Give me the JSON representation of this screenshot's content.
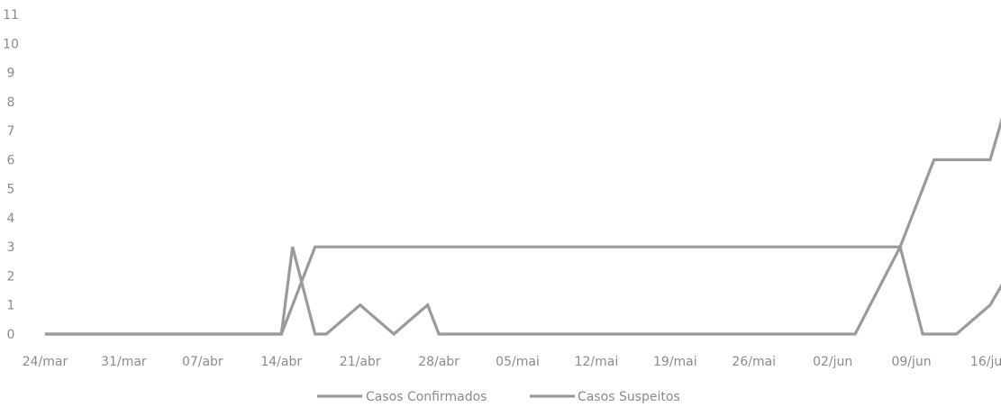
{
  "chart_data": {
    "type": "line",
    "ylim": [
      0,
      11
    ],
    "y_ticks": [
      "0",
      "1",
      "2",
      "3",
      "4",
      "5",
      "6",
      "7",
      "8",
      "9",
      "10",
      "11"
    ],
    "x_tick_labels": [
      "24/mar",
      "31/mar",
      "07/abr",
      "14/abr",
      "21/abr",
      "28/abr",
      "05/mai",
      "12/mai",
      "19/mai",
      "26/mai",
      "02/jun",
      "09/jun",
      "16/jun"
    ],
    "x_start": "2020-03-24",
    "x_end": "2020-06-16",
    "series": [
      {
        "name": "Casos Confirmados",
        "points": [
          [
            "2020-03-24",
            0
          ],
          [
            "2020-04-14",
            0
          ],
          [
            "2020-04-17",
            3
          ],
          [
            "2020-06-08",
            3
          ],
          [
            "2020-06-11",
            6
          ],
          [
            "2020-06-16",
            6
          ],
          [
            "2020-06-19",
            10
          ]
        ]
      },
      {
        "name": "Casos Suspeitos",
        "points": [
          [
            "2020-03-24",
            0
          ],
          [
            "2020-04-14",
            0
          ],
          [
            "2020-04-15",
            3
          ],
          [
            "2020-04-17",
            0
          ],
          [
            "2020-04-18",
            0
          ],
          [
            "2020-04-21",
            1
          ],
          [
            "2020-04-24",
            0
          ],
          [
            "2020-04-27",
            1
          ],
          [
            "2020-04-28",
            0
          ],
          [
            "2020-06-04",
            0
          ],
          [
            "2020-06-08",
            3
          ],
          [
            "2020-06-10",
            0
          ],
          [
            "2020-06-13",
            0
          ],
          [
            "2020-06-16",
            1
          ],
          [
            "2020-06-19",
            3
          ]
        ]
      }
    ],
    "line_color": "#9a9a9a",
    "legend": [
      "Casos Confirmados",
      "Casos Suspeitos"
    ],
    "legend_position": "bottom"
  }
}
